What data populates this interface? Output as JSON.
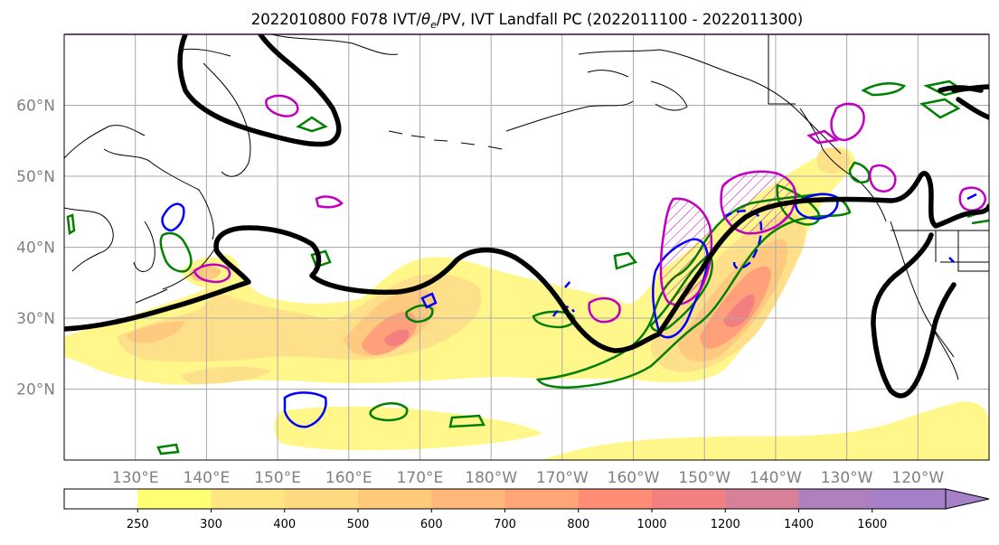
{
  "title": "2022010800 F078 IVT/θe/PV, IVT Landfall PC (2022011100 - 2022011300)",
  "title_parts": {
    "prefix": "2022010800 F078 IVT/",
    "theta": "θ",
    "sub": "e",
    "suffix": "/PV, IVT Landfall PC (2022011100 - 2022011300)"
  },
  "map": {
    "lon_range": [
      120,
      250
    ],
    "lat_range": [
      10,
      70
    ],
    "lat_ticks": [
      {
        "lat": 20,
        "label": "20°N"
      },
      {
        "lat": 30,
        "label": "30°N"
      },
      {
        "lat": 40,
        "label": "40°N"
      },
      {
        "lat": 50,
        "label": "50°N"
      },
      {
        "lat": 60,
        "label": "60°N"
      }
    ],
    "lon_ticks": [
      {
        "lon": 130,
        "label": "130°E"
      },
      {
        "lon": 140,
        "label": "140°E"
      },
      {
        "lon": 150,
        "label": "150°E"
      },
      {
        "lon": 160,
        "label": "160°E"
      },
      {
        "lon": 170,
        "label": "170°E"
      },
      {
        "lon": 180,
        "label": "180°W"
      },
      {
        "lon": 190,
        "label": "170°W"
      },
      {
        "lon": 200,
        "label": "160°W"
      },
      {
        "lon": 210,
        "label": "150°W"
      },
      {
        "lon": 220,
        "label": "140°W"
      },
      {
        "lon": 230,
        "label": "130°W"
      },
      {
        "lon": 240,
        "label": "120°W"
      }
    ],
    "grid": true
  },
  "colorbar": {
    "levels": [
      "250",
      "300",
      "400",
      "500",
      "600",
      "700",
      "800",
      "1000",
      "1200",
      "1400",
      "1600"
    ],
    "colors": [
      "#ffffff",
      "#ffff73",
      "#ffe680",
      "#ffd980",
      "#ffc97a",
      "#ffb87a",
      "#ffa577",
      "#ff8c75",
      "#f28080",
      "#d98099",
      "#b07fbf",
      "#a57fc8"
    ],
    "extend": "max"
  },
  "colors": {
    "theta_e": "#008000",
    "pv": "#0000ff",
    "landfall": "#c000c0",
    "ivt_line": "#000000",
    "coast": "#000000",
    "grid": "#aaaaaa"
  }
}
